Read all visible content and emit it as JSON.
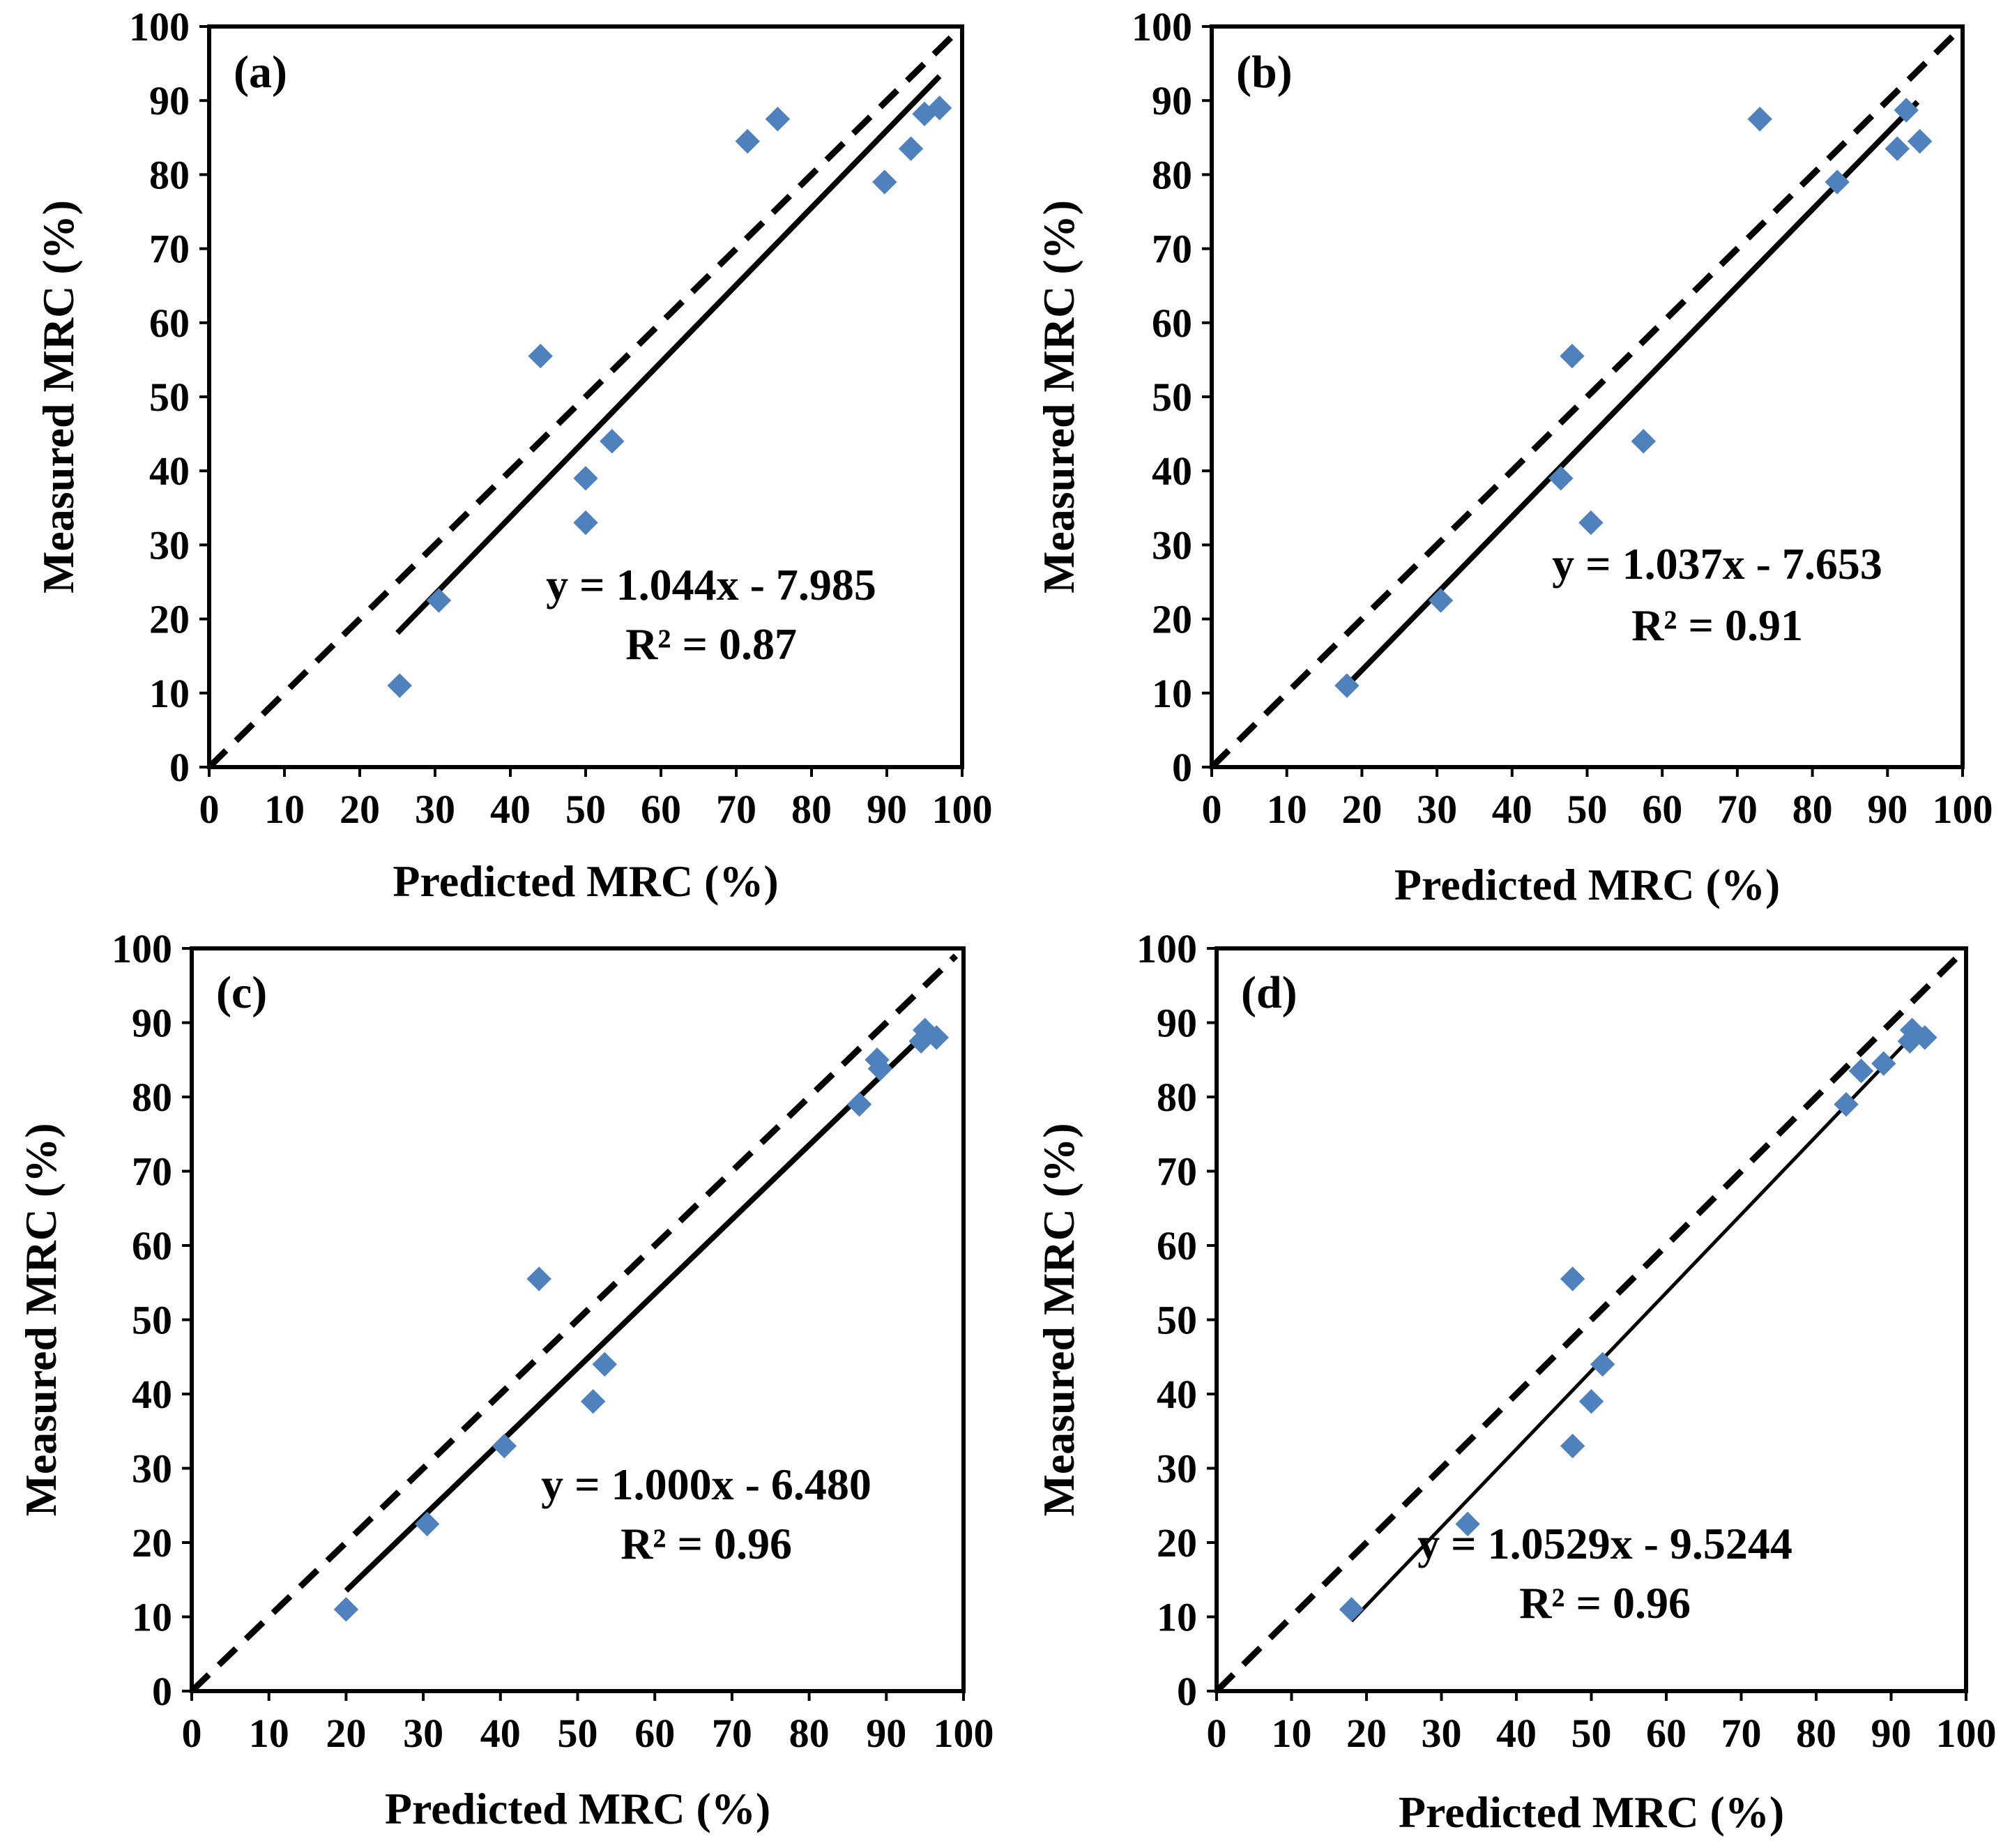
{
  "colors": {
    "marker": "#4F81BD",
    "axis": "#000000",
    "line": "#000000",
    "background": "#FFFFFF"
  },
  "chart_data": [
    {
      "type": "scatter",
      "panel_label": "(a)",
      "xlabel": "Predicted MRC (%)",
      "ylabel": "Measured MRC (%)",
      "xlim": [
        0,
        100
      ],
      "ylim": [
        0,
        100
      ],
      "x_ticks": [
        "0",
        "10",
        "20",
        "30",
        "40",
        "50",
        "60",
        "70",
        "80",
        "90",
        "100"
      ],
      "y_ticks": [
        "0",
        "10",
        "20",
        "30",
        "40",
        "50",
        "60",
        "70",
        "80",
        "90",
        "100"
      ],
      "points": [
        {
          "x": 25.3,
          "y": 11
        },
        {
          "x": 30.5,
          "y": 22.5
        },
        {
          "x": 44,
          "y": 55.5
        },
        {
          "x": 50,
          "y": 39
        },
        {
          "x": 50,
          "y": 33
        },
        {
          "x": 53.5,
          "y": 44
        },
        {
          "x": 71.5,
          "y": 84.5
        },
        {
          "x": 75.5,
          "y": 87.5
        },
        {
          "x": 89.7,
          "y": 79
        },
        {
          "x": 93.2,
          "y": 83.5
        },
        {
          "x": 95,
          "y": 88.2
        },
        {
          "x": 97,
          "y": 89
        }
      ],
      "fit": {
        "slope": 1.044,
        "intercept": -7.985,
        "x_range": [
          25,
          97
        ]
      },
      "one_to_one": {
        "x_range": [
          0,
          98.5
        ]
      },
      "equation": "y = 1.044x - 7.985",
      "r_squared": "R² = 0.87"
    },
    {
      "type": "scatter",
      "panel_label": "(b)",
      "xlabel": "Predicted MRC (%)",
      "ylabel": "Measured MRC (%)",
      "xlim": [
        0,
        100
      ],
      "ylim": [
        0,
        100
      ],
      "x_ticks": [
        "0",
        "10",
        "20",
        "30",
        "40",
        "50",
        "60",
        "70",
        "80",
        "90",
        "100"
      ],
      "y_ticks": [
        "0",
        "10",
        "20",
        "30",
        "40",
        "50",
        "60",
        "70",
        "80",
        "90",
        "100"
      ],
      "points": [
        {
          "x": 18,
          "y": 11
        },
        {
          "x": 30.5,
          "y": 22.5
        },
        {
          "x": 48,
          "y": 55.5
        },
        {
          "x": 46.5,
          "y": 39
        },
        {
          "x": 50.5,
          "y": 33
        },
        {
          "x": 57.5,
          "y": 44
        },
        {
          "x": 73,
          "y": 87.5
        },
        {
          "x": 83.3,
          "y": 79
        },
        {
          "x": 91.3,
          "y": 83.5
        },
        {
          "x": 92.5,
          "y": 88.7
        },
        {
          "x": 94.3,
          "y": 84.5
        }
      ],
      "fit": {
        "slope": 1.037,
        "intercept": -7.653,
        "x_range": [
          18,
          94
        ]
      },
      "one_to_one": {
        "x_range": [
          0,
          100
        ]
      },
      "equation": "y = 1.037x - 7.653",
      "r_squared": "R² = 0.91"
    },
    {
      "type": "scatter",
      "panel_label": "(c)",
      "xlabel": "Predicted MRC (%)",
      "ylabel": "Measured MRC (%)",
      "xlim": [
        0,
        100
      ],
      "ylim": [
        0,
        100
      ],
      "x_ticks": [
        "0",
        "10",
        "20",
        "30",
        "40",
        "50",
        "60",
        "70",
        "80",
        "90",
        "100"
      ],
      "y_ticks": [
        "0",
        "10",
        "20",
        "30",
        "40",
        "50",
        "60",
        "70",
        "80",
        "90",
        "100"
      ],
      "points": [
        {
          "x": 20,
          "y": 11
        },
        {
          "x": 30.5,
          "y": 22.5
        },
        {
          "x": 40.5,
          "y": 33
        },
        {
          "x": 45,
          "y": 55.5
        },
        {
          "x": 52,
          "y": 39
        },
        {
          "x": 53.5,
          "y": 44
        },
        {
          "x": 86.5,
          "y": 79
        },
        {
          "x": 88.8,
          "y": 85
        },
        {
          "x": 89.2,
          "y": 83.8
        },
        {
          "x": 94.5,
          "y": 87.5
        },
        {
          "x": 95,
          "y": 89
        },
        {
          "x": 96.5,
          "y": 88
        }
      ],
      "fit": {
        "slope": 1.0,
        "intercept": -6.48,
        "x_range": [
          20,
          96
        ]
      },
      "one_to_one": {
        "x_range": [
          0,
          99
        ]
      },
      "equation": "y = 1.000x - 6.480",
      "r_squared": "R² = 0.96"
    },
    {
      "type": "scatter",
      "panel_label": "(d)",
      "xlabel": "Predicted MRC (%)",
      "ylabel": "Measured MRC (%)",
      "xlim": [
        0,
        100
      ],
      "ylim": [
        0,
        100
      ],
      "x_ticks": [
        "0",
        "10",
        "20",
        "30",
        "40",
        "50",
        "60",
        "70",
        "80",
        "90",
        "100"
      ],
      "y_ticks": [
        "0",
        "10",
        "20",
        "30",
        "40",
        "50",
        "60",
        "70",
        "80",
        "90",
        "100"
      ],
      "points": [
        {
          "x": 18,
          "y": 11
        },
        {
          "x": 33.5,
          "y": 22.5
        },
        {
          "x": 47.5,
          "y": 55.5
        },
        {
          "x": 47.5,
          "y": 33
        },
        {
          "x": 50,
          "y": 39
        },
        {
          "x": 51.5,
          "y": 44
        },
        {
          "x": 84,
          "y": 79
        },
        {
          "x": 86,
          "y": 83.5
        },
        {
          "x": 89,
          "y": 84.5
        },
        {
          "x": 92.5,
          "y": 87.5
        },
        {
          "x": 92.8,
          "y": 89
        },
        {
          "x": 94.5,
          "y": 88
        }
      ],
      "fit": {
        "slope": 1.0529,
        "intercept": -9.5244,
        "x_range": [
          18,
          94
        ]
      },
      "one_to_one": {
        "x_range": [
          0,
          100
        ]
      },
      "equation": "y = 1.0529x - 9.5244",
      "r_squared": "R² = 0.96"
    }
  ]
}
